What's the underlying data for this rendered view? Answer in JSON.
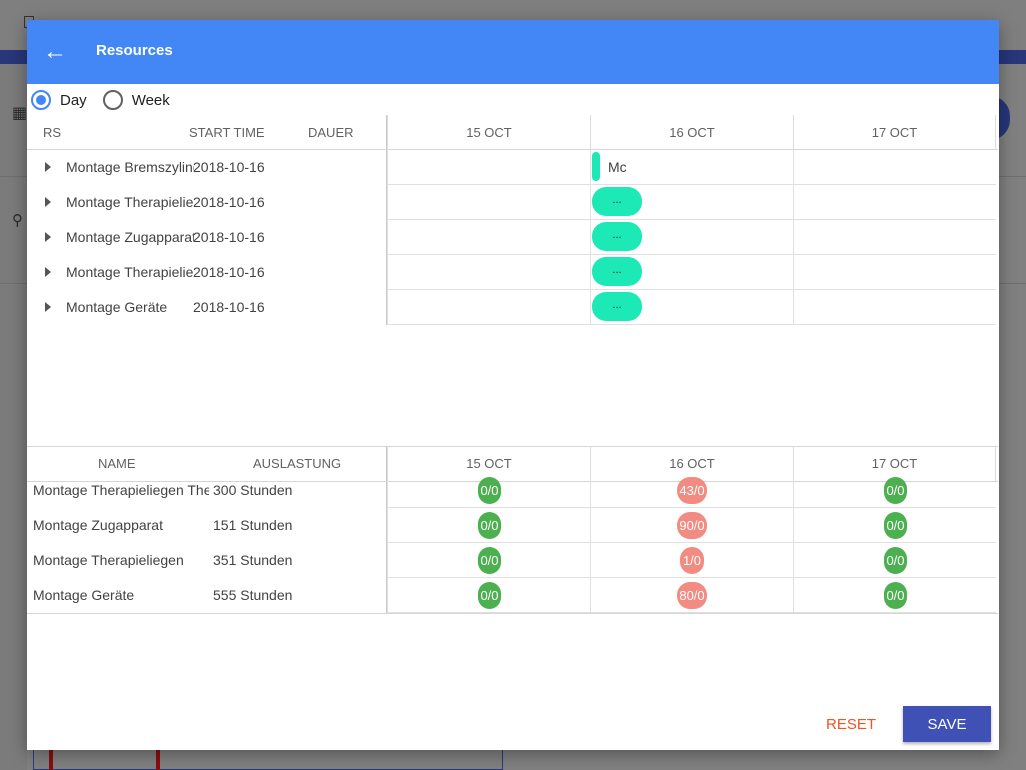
{
  "dialog": {
    "title": "Resources",
    "back_icon": "←"
  },
  "view_toggle": {
    "options": [
      {
        "label": "Day",
        "selected": true
      },
      {
        "label": "Week",
        "selected": false
      }
    ]
  },
  "tasks_grid": {
    "headers": {
      "rs": "RS",
      "start_time": "START TIME",
      "dauer": "DAUER"
    },
    "date_columns": [
      "15 OCT",
      "16 OCT",
      "17 OCT"
    ],
    "rows": [
      {
        "name": "Montage Bremszylinder",
        "start": "2018-10-16",
        "bar_label": "Mc"
      },
      {
        "name": "Montage Therapieliegen",
        "start": "2018-10-16",
        "bar_label": "..."
      },
      {
        "name": "Montage Zugapparat",
        "start": "2018-10-16",
        "bar_label": "..."
      },
      {
        "name": "Montage Therapieliegen",
        "start": "2018-10-16",
        "bar_label": "..."
      },
      {
        "name": "Montage Geräte",
        "start": "2018-10-16",
        "bar_label": "..."
      }
    ]
  },
  "resources_grid": {
    "headers": {
      "name": "NAME",
      "auslastung": "AUSLASTUNG"
    },
    "date_columns": [
      "15 OCT",
      "16 OCT",
      "17 OCT"
    ],
    "rows": [
      {
        "name": "Montage Therapieliegen Therapie",
        "load": "300 Stunden",
        "values": [
          "0/0",
          "43/0",
          "0/0"
        ]
      },
      {
        "name": "Montage Zugapparat",
        "load": "151 Stunden",
        "values": [
          "0/0",
          "90/0",
          "0/0"
        ]
      },
      {
        "name": "Montage Therapieliegen",
        "load": "351 Stunden",
        "values": [
          "0/0",
          "1/0",
          "0/0"
        ]
      },
      {
        "name": "Montage Geräte",
        "load": "555 Stunden",
        "values": [
          "0/0",
          "80/0",
          "0/0"
        ]
      }
    ]
  },
  "actions": {
    "reset": "RESET",
    "save": "SAVE"
  },
  "colors": {
    "header": "#4287f5",
    "task_bar": "#1de9b6",
    "badge_green": "#4caf50",
    "badge_red": "#f28b82",
    "save_button": "#3f51b5",
    "reset_text": "#f4511e"
  }
}
